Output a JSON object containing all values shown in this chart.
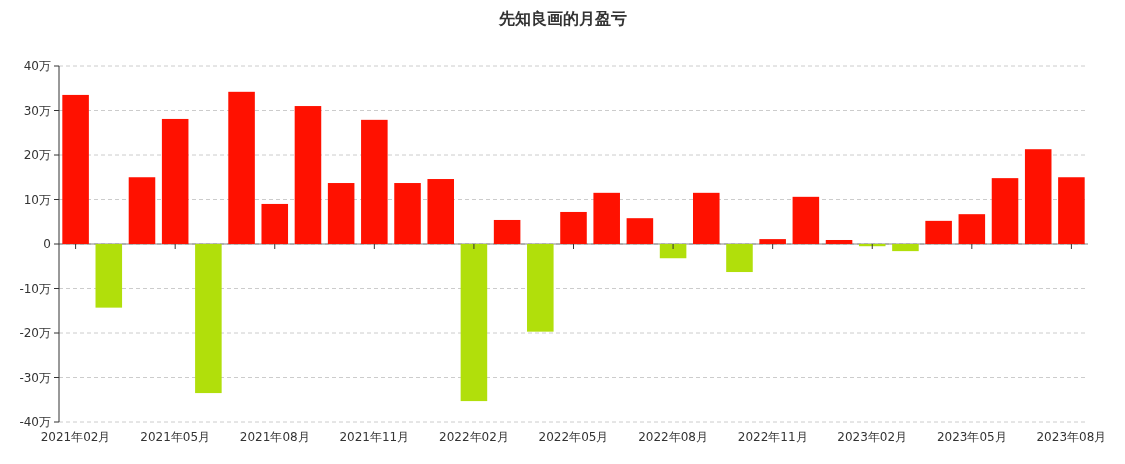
{
  "chart_data": {
    "type": "bar",
    "title": "先知良画的月盈亏",
    "categories": [
      "2021年02月",
      null,
      null,
      "2021年05月",
      null,
      null,
      "2021年08月",
      null,
      null,
      "2021年11月",
      null,
      null,
      "2022年02月",
      null,
      null,
      "2022年05月",
      null,
      null,
      "2022年08月",
      null,
      null,
      "2022年11月",
      null,
      null,
      "2023年02月",
      null,
      null,
      "2023年05月",
      null,
      null,
      "2023年08月"
    ],
    "values": [
      33.5,
      -14.3,
      15.0,
      28.1,
      -33.5,
      34.2,
      9.0,
      31.0,
      13.7,
      27.9,
      13.7,
      14.6,
      -35.3,
      5.4,
      -19.7,
      7.2,
      11.5,
      5.8,
      -3.2,
      11.5,
      -6.3,
      1.1,
      10.6,
      0.9,
      -0.5,
      -1.6,
      5.2,
      6.7,
      14.8,
      21.3,
      15.0
    ],
    "colors": [
      "#ff1100",
      "#b1df0b",
      "#ff1100",
      "#ff1100",
      "#b1df0b",
      "#ff1100",
      "#ff1100",
      "#ff1100",
      "#ff1100",
      "#ff1100",
      "#ff1100",
      "#ff1100",
      "#b1df0b",
      "#ff1100",
      "#b1df0b",
      "#ff1100",
      "#ff1100",
      "#ff1100",
      "#b1df0b",
      "#ff1100",
      "#b1df0b",
      "#ff1100",
      "#ff1100",
      "#ff1100",
      "#b1df0b",
      "#b1df0b",
      "#ff1100",
      "#ff1100",
      "#ff1100",
      "#ff1100",
      "#ff1100"
    ],
    "ylim": [
      -40,
      40
    ],
    "yticks": [
      {
        "value": -40,
        "label": "-40万"
      },
      {
        "value": -30,
        "label": "-30万"
      },
      {
        "value": -20,
        "label": "-20万"
      },
      {
        "value": -10,
        "label": "-10万"
      },
      0,
      {
        "value": 10,
        "label": "10万"
      },
      {
        "value": 20,
        "label": "20万"
      },
      {
        "value": 30,
        "label": "30万"
      },
      {
        "value": 40,
        "label": "40万"
      }
    ],
    "grid": "y"
  }
}
